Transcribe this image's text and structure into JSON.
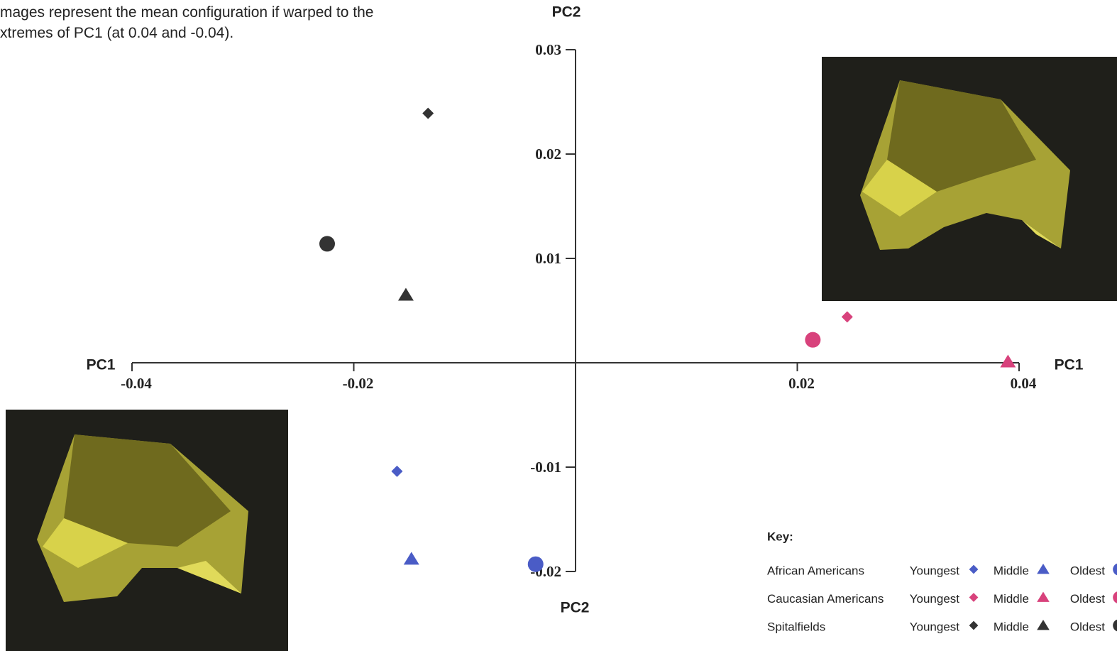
{
  "chart_data": {
    "type": "scatter",
    "caption": [
      "mages represent the mean configuration if warped to the",
      "xtremes of PC1 (at 0.04 and -0.04)."
    ],
    "xlabel": "PC1",
    "ylabel": "PC2",
    "xlim": [
      -0.04,
      0.04
    ],
    "ylim": [
      -0.02,
      0.03
    ],
    "xticks": [
      -0.04,
      -0.02,
      0.02,
      0.04
    ],
    "yticks": [
      -0.02,
      -0.01,
      0.01,
      0.02,
      0.03
    ],
    "legend_title": "Key:",
    "series": [
      {
        "name": "African Americans",
        "color": "#4a5cc6",
        "labels": [
          "Youngest",
          "Middle",
          "Oldest"
        ],
        "markers": [
          "diamond",
          "triangle",
          "circle"
        ],
        "x": [
          -0.0161,
          -0.0148,
          -0.0036
        ],
        "values": [
          -0.0104,
          -0.0188,
          -0.0193
        ]
      },
      {
        "name": "Caucasian Americans",
        "color": "#d8427c",
        "labels": [
          "Youngest",
          "Middle",
          "Oldest"
        ],
        "markers": [
          "diamond",
          "triangle",
          "circle"
        ],
        "x": [
          0.0245,
          0.039,
          0.0214
        ],
        "values": [
          0.0044,
          0.0001,
          0.0022
        ]
      },
      {
        "name": "Spitalfields",
        "color": "#333333",
        "labels": [
          "Youngest",
          "Middle",
          "Oldest"
        ],
        "markers": [
          "diamond",
          "triangle",
          "circle"
        ],
        "x": [
          -0.0133,
          -0.0153,
          -0.0224
        ],
        "values": [
          0.0239,
          0.0065,
          0.0114
        ]
      }
    ]
  }
}
